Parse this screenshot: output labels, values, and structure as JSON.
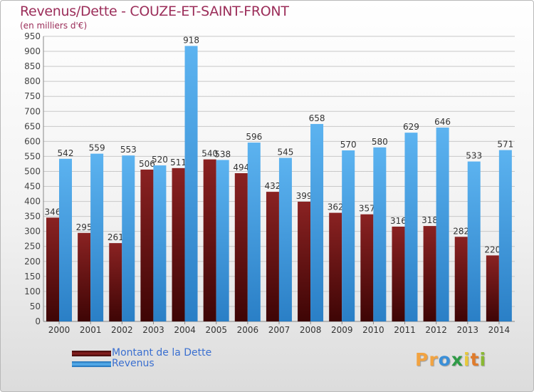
{
  "chart_data": {
    "type": "bar",
    "title": "Revenus/Dette - COUZE-ET-SAINT-FRONT",
    "subtitle": "(en milliers d'€)",
    "categories": [
      "2000",
      "2001",
      "2002",
      "2003",
      "2004",
      "2005",
      "2006",
      "2007",
      "2008",
      "2009",
      "2010",
      "2011",
      "2012",
      "2013",
      "2014"
    ],
    "series": [
      {
        "name": "Montant de la Dette",
        "color": "#7a1a1a",
        "values": [
          346,
          295,
          261,
          506,
          511,
          540,
          494,
          432,
          399,
          362,
          357,
          316,
          318,
          282,
          220
        ]
      },
      {
        "name": "Revenus",
        "color": "#4aa3e6",
        "values": [
          542,
          559,
          553,
          520,
          918,
          538,
          596,
          545,
          658,
          570,
          580,
          629,
          646,
          533,
          571
        ]
      }
    ],
    "ylim": [
      0,
      950
    ],
    "yticks": [
      0,
      50,
      100,
      150,
      200,
      250,
      300,
      350,
      400,
      450,
      500,
      550,
      600,
      650,
      700,
      750,
      800,
      850,
      900,
      950
    ],
    "grid": true,
    "legend_position": "bottom-left"
  },
  "logo": {
    "text": "Proxiti",
    "letters": [
      "P",
      "r",
      "o",
      "x",
      "i",
      "t",
      "i"
    ],
    "colors": [
      "#f2a341",
      "#f2a341",
      "#3a8fd8",
      "#2e9a46",
      "#e8c93a",
      "#e07b2a",
      "#8ab833"
    ]
  }
}
